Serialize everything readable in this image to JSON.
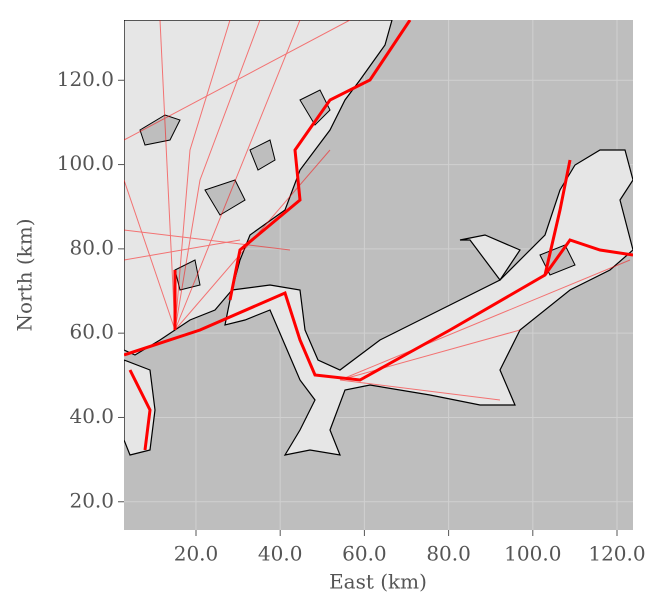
{
  "chart_data": {
    "type": "map",
    "xlabel": "East (km)",
    "ylabel": "North (km)",
    "xlim": [
      2.9,
      123.8
    ],
    "ylim": [
      13.3,
      134.3
    ],
    "xticks": [
      {
        "value": 20,
        "label": "20.0"
      },
      {
        "value": 40,
        "label": "40.0"
      },
      {
        "value": 60,
        "label": "60.0"
      },
      {
        "value": 80,
        "label": "80.0"
      },
      {
        "value": 100,
        "label": "100.0"
      },
      {
        "value": 120,
        "label": "120.0"
      }
    ],
    "yticks": [
      {
        "value": 20,
        "label": "20.0"
      },
      {
        "value": 40,
        "label": "40.0"
      },
      {
        "value": 60,
        "label": "60.0"
      },
      {
        "value": 80,
        "label": "80.0"
      },
      {
        "value": 100,
        "label": "100.0"
      },
      {
        "value": 120,
        "label": "120.0"
      }
    ],
    "grid": true
  }
}
